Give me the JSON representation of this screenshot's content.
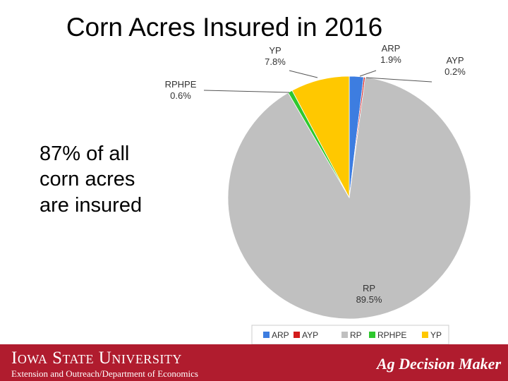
{
  "slide": {
    "title": "Corn Acres Insured in 2016",
    "side_text": [
      "87% of all",
      "corn acres",
      "are insured"
    ]
  },
  "footer": {
    "university": "Iowa State University",
    "department": "Extension and Outreach/Department of Economics",
    "brand": "Ag Decision Maker"
  },
  "chart_data": {
    "type": "pie",
    "title": "Corn Acres Insured in 2016",
    "slices": [
      {
        "label": "ARP",
        "value": 1.9,
        "display": "1.9%",
        "color": "#3d7de0"
      },
      {
        "label": "AYP",
        "value": 0.2,
        "display": "0.2%",
        "color": "#d31b1b"
      },
      {
        "label": "RP",
        "value": 89.5,
        "display": "89.5%",
        "color": "#c0c0c0"
      },
      {
        "label": "RPHPE",
        "value": 0.6,
        "display": "0.6%",
        "color": "#2ec82e"
      },
      {
        "label": "YP",
        "value": 7.8,
        "display": "7.8%",
        "color": "#ffc800"
      }
    ],
    "legend": {
      "placement": "bottom",
      "entries": [
        "ARP",
        "AYP",
        "RP",
        "RPHPE",
        "YP"
      ]
    }
  }
}
